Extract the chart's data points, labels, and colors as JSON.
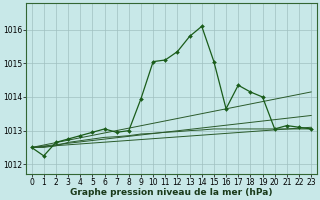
{
  "title": "Graphe pression niveau de la mer (hPa)",
  "background_color": "#c8e8e8",
  "grid_color": "#a0c0c0",
  "line_color_main": "#1a5c1a",
  "line_color_secondary": "#2a5a2a",
  "tick_fontsize": 5.5,
  "xlabel_fontsize": 6.5,
  "xlim": [
    -0.5,
    23.5
  ],
  "ylim": [
    1011.7,
    1016.8
  ],
  "yticks": [
    1012,
    1013,
    1014,
    1015,
    1016
  ],
  "xticks": [
    0,
    1,
    2,
    3,
    4,
    5,
    6,
    7,
    8,
    9,
    10,
    11,
    12,
    13,
    14,
    15,
    16,
    17,
    18,
    19,
    20,
    21,
    22,
    23
  ],
  "series_main": {
    "x": [
      0,
      1,
      2,
      3,
      4,
      5,
      6,
      7,
      8,
      9,
      10,
      11,
      12,
      13,
      14,
      15,
      16,
      17,
      18,
      19,
      20,
      21,
      22,
      23
    ],
    "y": [
      1012.5,
      1012.25,
      1012.65,
      1012.75,
      1012.85,
      1012.95,
      1013.05,
      1012.95,
      1013.0,
      1013.95,
      1015.05,
      1015.1,
      1015.35,
      1015.8,
      1016.1,
      1015.05,
      1013.65,
      1014.35,
      1014.15,
      1014.0,
      1013.05,
      1013.15,
      1013.1,
      1013.05
    ]
  },
  "series_line1": {
    "x": [
      0,
      23
    ],
    "y": [
      1012.5,
      1013.1
    ]
  },
  "series_line2": {
    "x": [
      0,
      23
    ],
    "y": [
      1012.5,
      1013.45
    ]
  },
  "series_line3": {
    "x": [
      0,
      23
    ],
    "y": [
      1012.5,
      1014.15
    ]
  },
  "series_flat": {
    "x": [
      0,
      1,
      2,
      3,
      4,
      5,
      6,
      7,
      8,
      9,
      10,
      11,
      12,
      13,
      14,
      15,
      16,
      17,
      18,
      19,
      20,
      21,
      22,
      23
    ],
    "y": [
      1012.5,
      1012.5,
      1012.55,
      1012.65,
      1012.7,
      1012.75,
      1012.8,
      1012.82,
      1012.85,
      1012.9,
      1012.92,
      1012.95,
      1012.97,
      1013.0,
      1013.02,
      1013.05,
      1013.05,
      1013.05,
      1013.05,
      1013.05,
      1013.05,
      1013.05,
      1013.05,
      1013.05
    ]
  }
}
